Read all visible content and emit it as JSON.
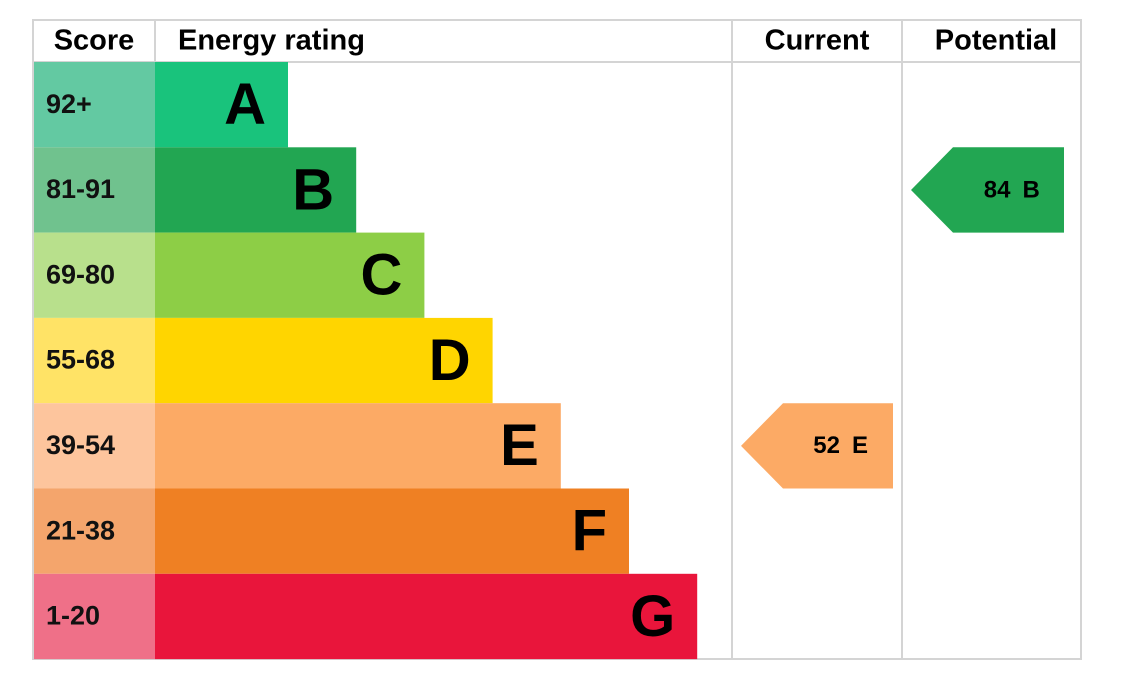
{
  "header": {
    "score": "Score",
    "rating": "Energy rating",
    "current": "Current",
    "potential": "Potential"
  },
  "rows": [
    {
      "score": "92+",
      "band": "A",
      "color": "#19c37c",
      "score_color": "#63c9a2"
    },
    {
      "score": "81-91",
      "band": "B",
      "color": "#22a652",
      "score_color": "#70c28e"
    },
    {
      "score": "69-80",
      "band": "C",
      "color": "#8dce46",
      "score_color": "#b8e08c"
    },
    {
      "score": "55-68",
      "band": "D",
      "color": "#ffd500",
      "score_color": "#ffe366"
    },
    {
      "score": "39-54",
      "band": "E",
      "color": "#fcaa65",
      "score_color": "#fdc59d"
    },
    {
      "score": "21-38",
      "band": "F",
      "color": "#ef8023",
      "score_color": "#f4a56c"
    },
    {
      "score": "1-20",
      "band": "G",
      "color": "#e9153b",
      "score_color": "#ef7088"
    }
  ],
  "current": {
    "value": 52,
    "band": "E"
  },
  "potential": {
    "value": 84,
    "band": "B"
  }
}
